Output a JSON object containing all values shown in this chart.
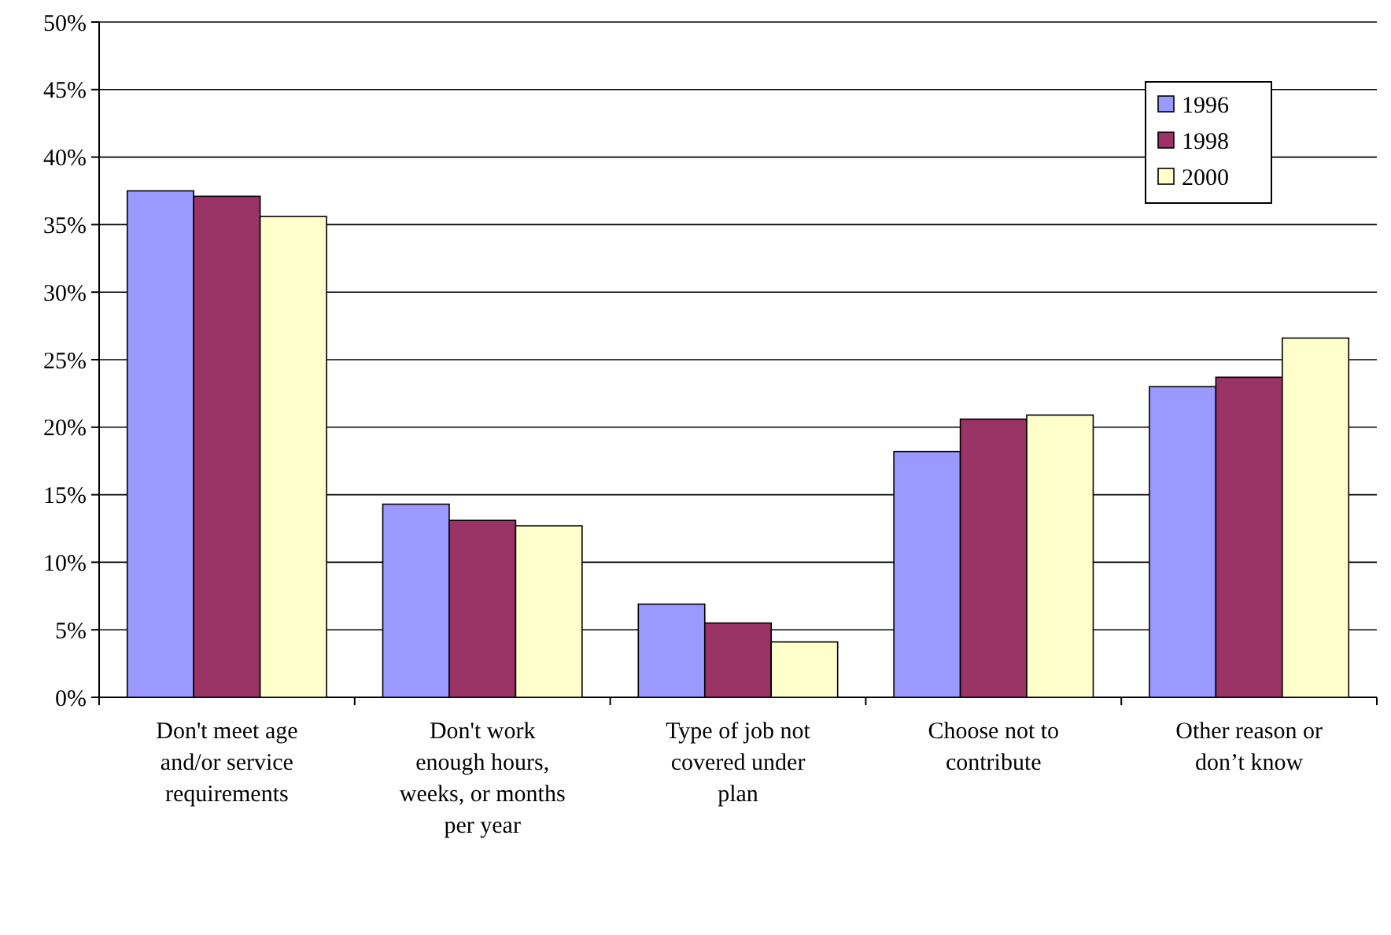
{
  "chart_data": {
    "type": "bar",
    "categories": [
      "Don't meet age and/or service requirements",
      "Don't work enough hours, weeks, or months per year",
      "Type of job not covered under plan",
      "Choose not to contribute",
      "Other reason or don’t know"
    ],
    "series": [
      {
        "name": "1996",
        "color": "#9999ff",
        "values": [
          37.5,
          14.3,
          6.9,
          18.2,
          23.0
        ]
      },
      {
        "name": "1998",
        "color": "#993366",
        "values": [
          37.1,
          13.1,
          5.5,
          20.6,
          23.7
        ]
      },
      {
        "name": "2000",
        "color": "#ffffcc",
        "values": [
          35.6,
          12.7,
          4.1,
          20.9,
          26.6
        ]
      }
    ],
    "ylim": [
      0,
      50
    ],
    "yticks": [
      {
        "value": 0,
        "label": "0%"
      },
      {
        "value": 5,
        "label": "5%"
      },
      {
        "value": 10,
        "label": "10%"
      },
      {
        "value": 15,
        "label": "15%"
      },
      {
        "value": 20,
        "label": "20%"
      },
      {
        "value": 25,
        "label": "25%"
      },
      {
        "value": 30,
        "label": "30%"
      },
      {
        "value": 35,
        "label": "35%"
      },
      {
        "value": 40,
        "label": "40%"
      },
      {
        "value": 45,
        "label": "45%"
      },
      {
        "value": 50,
        "label": "50%"
      }
    ],
    "grid": "y",
    "legend": "top right"
  }
}
